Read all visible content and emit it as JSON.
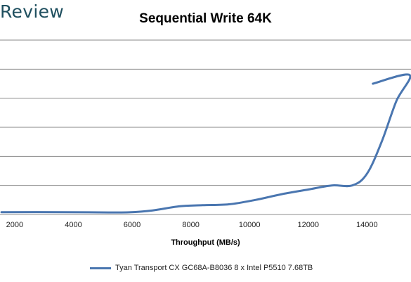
{
  "brand": {
    "text": "Review",
    "color": "#1f4f5f"
  },
  "chart_data": {
    "type": "line",
    "title": "Sequential Write 64K",
    "xlabel": "Throughput (MB/s)",
    "ylabel": "",
    "xlim": [
      1500,
      15500
    ],
    "x_ticks": [
      "2000",
      "4000",
      "6000",
      "8000",
      "10000",
      "12000",
      "14000"
    ],
    "y_tick_labels_visible": false,
    "grid": true,
    "legend_position": "bottom",
    "series": [
      {
        "name": "Tyan Transport CX GC68A-B8036 8 x Intel P5510 7.68TB",
        "color": "#4a76b0",
        "x": [
          1550,
          3700,
          5200,
          5900,
          6700,
          7600,
          8400,
          9300,
          10200,
          11100,
          12000,
          12800,
          13500,
          14000,
          14500,
          15000,
          15450,
          14200
        ],
        "y": [
          0.4,
          0.4,
          0.35,
          0.38,
          0.7,
          1.4,
          1.6,
          1.75,
          2.5,
          3.5,
          4.3,
          5.0,
          5.0,
          7.0,
          12.5,
          19.5,
          24.0,
          22.5
        ]
      }
    ]
  }
}
